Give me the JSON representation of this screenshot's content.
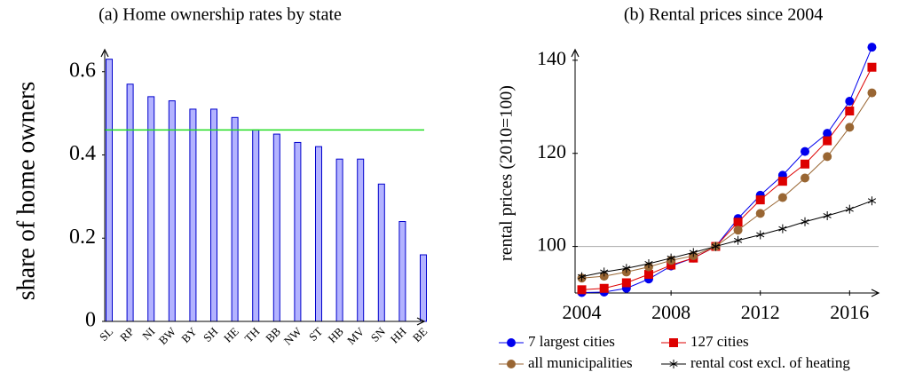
{
  "chart_data": [
    {
      "type": "bar",
      "title": "(a) Home ownership rates by state",
      "y_label": "share of home owners",
      "categories": [
        "SL",
        "RP",
        "NI",
        "BW",
        "BY",
        "SH",
        "HE",
        "TH",
        "BB",
        "NW",
        "ST",
        "HB",
        "MV",
        "SN",
        "HH",
        "BE"
      ],
      "values": [
        0.63,
        0.57,
        0.54,
        0.53,
        0.51,
        0.51,
        0.49,
        0.46,
        0.45,
        0.43,
        0.42,
        0.39,
        0.39,
        0.33,
        0.24,
        0.16
      ],
      "color": "#b3b3ff",
      "edge_color": "#0000cc",
      "ylim": [
        0,
        0.64
      ],
      "yticks": [
        0,
        0.2,
        0.4,
        0.6
      ],
      "reference_line": {
        "value": 0.46,
        "color": "#22dd22"
      }
    },
    {
      "type": "line",
      "title": "(b) Rental prices since 2004",
      "y_label": "rental prices (2010=100)",
      "x": [
        2004,
        2005,
        2006,
        2007,
        2008,
        2009,
        2010,
        2011,
        2012,
        2013,
        2014,
        2015,
        2016,
        2017
      ],
      "series": [
        {
          "name": "7 largest cities",
          "color": "#0000ee",
          "marker": "circle",
          "values": [
            90.1,
            90.2,
            91.0,
            93.0,
            95.8,
            97.5,
            100,
            106.0,
            111.0,
            115.3,
            120.4,
            124.3,
            131.2,
            142.8
          ]
        },
        {
          "name": "127 cities",
          "color": "#dd0000",
          "marker": "square",
          "values": [
            90.7,
            91.0,
            92.2,
            94.0,
            96.0,
            97.5,
            100,
            105.2,
            110.0,
            114.0,
            117.7,
            122.7,
            129.1,
            138.5
          ]
        },
        {
          "name": "all municipalities",
          "color": "#996633",
          "marker": "circle",
          "values": [
            93.2,
            93.6,
            94.5,
            95.6,
            97.0,
            98.0,
            100,
            103.5,
            107.1,
            110.5,
            114.7,
            119.3,
            125.6,
            133.0
          ]
        },
        {
          "name": "rental cost excl. of heating",
          "color": "#000000",
          "marker": "star",
          "values": [
            93.5,
            94.5,
            95.3,
            96.3,
            97.5,
            98.7,
            100,
            101.3,
            102.5,
            103.8,
            105.3,
            106.6,
            108.0,
            109.8
          ]
        }
      ],
      "xlim": [
        2003.7,
        2017.3
      ],
      "xticks": [
        2004,
        2008,
        2012,
        2016
      ],
      "ylim": [
        90,
        141.5
      ],
      "yticks": [
        100,
        120,
        140
      ],
      "grid_lines": [
        100
      ]
    }
  ]
}
